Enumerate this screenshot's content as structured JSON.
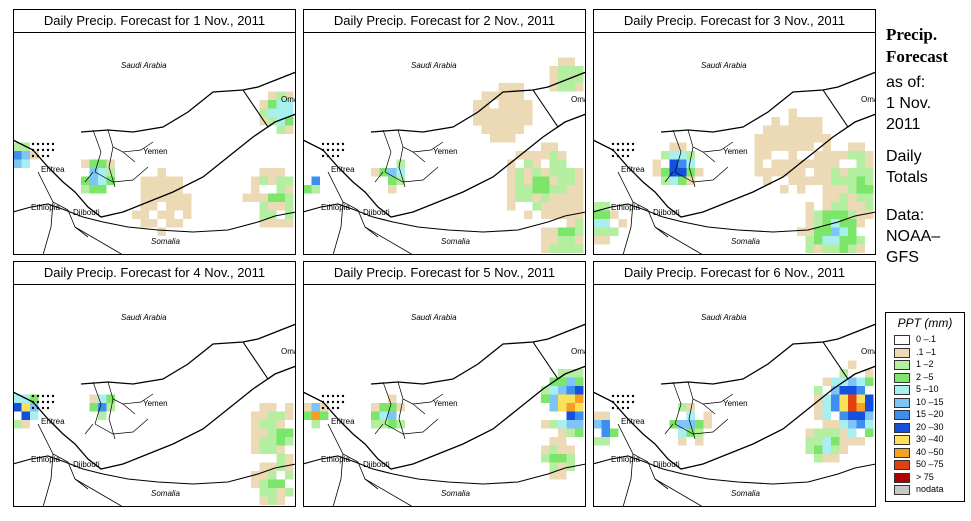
{
  "panels": [
    {
      "title": "Daily Precip. Forecast for  1 Nov., 2011",
      "country_labels": [
        "Saudi Arabia",
        "Oman",
        "Yemen",
        "Eritrea",
        "Ethiopia",
        "Djibouti",
        "Somalia"
      ]
    },
    {
      "title": "Daily Precip. Forecast for  2 Nov., 2011",
      "country_labels": [
        "Saudi Arabia",
        "Oman",
        "Yemen",
        "Eritrea",
        "Ethiopia",
        "Djibouti",
        "Somalia"
      ]
    },
    {
      "title": "Daily Precip. Forecast for  3 Nov., 2011",
      "country_labels": [
        "Saudi Arabia",
        "Oman",
        "Yemen",
        "Eritrea",
        "Ethiopia",
        "Djibouti",
        "Somalia"
      ]
    },
    {
      "title": "Daily Precip. Forecast for  4 Nov., 2011",
      "country_labels": [
        "Saudi Arabia",
        "Oman",
        "Yemen",
        "Eritrea",
        "Ethiopia",
        "Djibouti",
        "Somalia"
      ]
    },
    {
      "title": "Daily Precip. Forecast for  5 Nov., 2011",
      "country_labels": [
        "Saudi Arabia",
        "Oman",
        "Yemen",
        "Eritrea",
        "Ethiopia",
        "Djibouti",
        "Somalia"
      ]
    },
    {
      "title": "Daily Precip. Forecast for  6 Nov., 2011",
      "country_labels": [
        "Saudi Arabia",
        "Oman",
        "Yemen",
        "Eritrea",
        "Ethiopia",
        "Djibouti",
        "Somalia"
      ]
    }
  ],
  "sidebar": {
    "heading1": "Precip.",
    "heading2": "Forecast",
    "asof": "as of:",
    "date1": "1 Nov.",
    "date2": "2011",
    "daily1": "Daily",
    "daily2": "Totals",
    "data1": "Data:",
    "data2": "NOAA–",
    "data3": "GFS"
  },
  "legend": {
    "title": "PPT (mm)",
    "items": [
      {
        "label": "0 –.1",
        "color": "#ffffff"
      },
      {
        "label": ".1 –1",
        "color": "#ecd9b5"
      },
      {
        "label": "1 –2",
        "color": "#b4eea0"
      },
      {
        "label": "2 –5",
        "color": "#7ce66a"
      },
      {
        "label": "5 –10",
        "color": "#a8f0f0"
      },
      {
        "label": "10 –15",
        "color": "#7ec4f5"
      },
      {
        "label": "15 –20",
        "color": "#3e8ef0"
      },
      {
        "label": "20 –30",
        "color": "#1450e0"
      },
      {
        "label": "30 –40",
        "color": "#fce05a"
      },
      {
        "label": "40 –50",
        "color": "#f5a022"
      },
      {
        "label": "50 –75",
        "color": "#e24010"
      },
      {
        "label": "> 75",
        "color": "#b00000"
      },
      {
        "label": "nodata",
        "color": "#c8c8c8"
      }
    ]
  }
}
